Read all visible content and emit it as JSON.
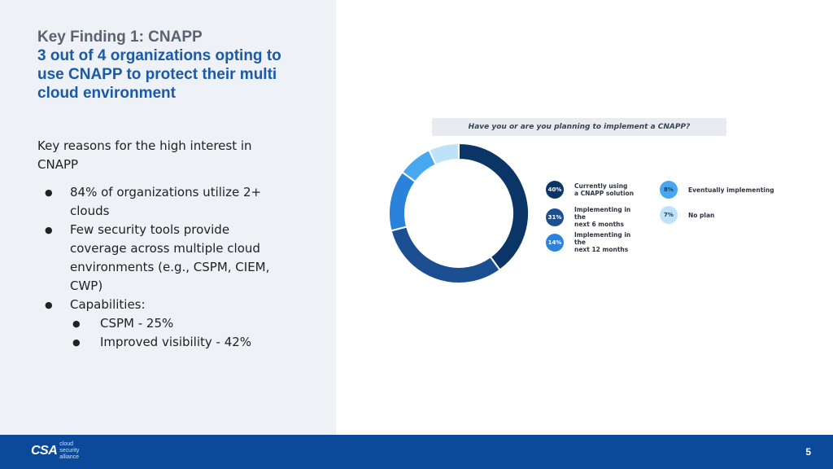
{
  "slide": {
    "kicker": "Key Finding 1: CNAPP",
    "headline": "3 out of 4 organizations opting to use CNAPP to protect their multi cloud environment",
    "reasons_intro": "Key reasons for the high interest in CNAPP",
    "bullets": [
      "84% of organizations utilize 2+ clouds",
      "Few security tools provide coverage across multiple cloud environments (e.g., CSPM, CIEM, CWP)",
      "Capabilities:"
    ],
    "sub_bullets": [
      "CSPM - 25%",
      "Improved visibility - 42%"
    ],
    "page_number": "5"
  },
  "footer": {
    "logo_mark": "CSA",
    "logo_text": "cloud\nsecurity\nalliance"
  },
  "chart_data": {
    "type": "pie",
    "subtitle": "Have you or are you planning to implement a CNAPP?",
    "series": [
      {
        "name": "Currently using\na CNAPP solution",
        "value": 40,
        "label": "40%",
        "color": "#0b3566"
      },
      {
        "name": "Implementing in the\nnext 6 months",
        "value": 31,
        "label": "31%",
        "color": "#1b4f92"
      },
      {
        "name": "Implementing in the\nnext 12 months",
        "value": 14,
        "label": "14%",
        "color": "#2a82db"
      },
      {
        "name": "Eventually implementing",
        "value": 8,
        "label": "8%",
        "color": "#47a8ef"
      },
      {
        "name": "No plan",
        "value": 7,
        "label": "7%",
        "color": "#bfe2fb"
      }
    ],
    "legend": "right"
  }
}
